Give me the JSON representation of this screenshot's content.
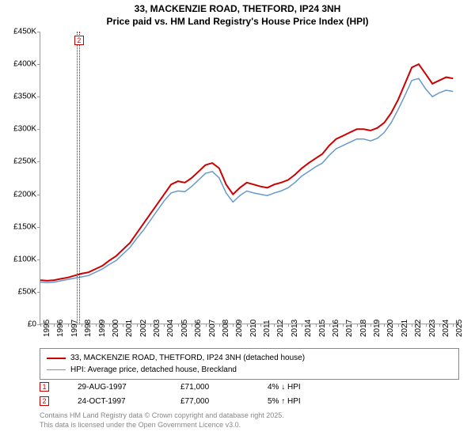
{
  "title_line1": "33, MACKENZIE ROAD, THETFORD, IP24 3NH",
  "title_line2": "Price paid vs. HM Land Registry's House Price Index (HPI)",
  "chart": {
    "type": "line",
    "background_color": "#ffffff",
    "ylim": [
      0,
      450000
    ],
    "xlim": [
      1995,
      2025.5
    ],
    "yticks": [
      0,
      50000,
      100000,
      150000,
      200000,
      250000,
      300000,
      350000,
      400000,
      450000
    ],
    "ytick_labels": [
      "£0",
      "£50K",
      "£100K",
      "£150K",
      "£200K",
      "£250K",
      "£300K",
      "£350K",
      "£400K",
      "£450K"
    ],
    "xticks": [
      1995,
      1996,
      1997,
      1998,
      1999,
      2000,
      2001,
      2002,
      2003,
      2004,
      2005,
      2006,
      2007,
      2008,
      2009,
      2010,
      2011,
      2012,
      2013,
      2014,
      2015,
      2016,
      2017,
      2018,
      2019,
      2020,
      2021,
      2022,
      2023,
      2024,
      2025
    ],
    "tick_color": "#999999",
    "tick_fontsize": 10,
    "series": [
      {
        "name": "price_paid",
        "label": "33, MACKENZIE ROAD, THETFORD, IP24 3NH (detached house)",
        "color": "#cc0000",
        "line_width": 2,
        "x": [
          1995,
          1995.5,
          1996,
          1996.5,
          1997,
          1997.5,
          1998,
          1998.5,
          1999,
          1999.5,
          2000,
          2000.5,
          2001,
          2001.5,
          2002,
          2002.5,
          2003,
          2003.5,
          2004,
          2004.5,
          2005,
          2005.5,
          2006,
          2006.5,
          2007,
          2007.5,
          2008,
          2008.5,
          2009,
          2009.5,
          2010,
          2010.5,
          2011,
          2011.5,
          2012,
          2012.5,
          2013,
          2013.5,
          2014,
          2014.5,
          2015,
          2015.5,
          2016,
          2016.5,
          2017,
          2017.5,
          2018,
          2018.5,
          2019,
          2019.5,
          2020,
          2020.5,
          2021,
          2021.5,
          2022,
          2022.5,
          2023,
          2023.5,
          2024,
          2024.5,
          2025
        ],
        "y": [
          68000,
          67000,
          68000,
          70000,
          72000,
          75000,
          78000,
          80000,
          85000,
          90000,
          98000,
          105000,
          115000,
          125000,
          140000,
          155000,
          170000,
          185000,
          200000,
          215000,
          220000,
          218000,
          225000,
          235000,
          245000,
          248000,
          240000,
          215000,
          200000,
          210000,
          218000,
          215000,
          212000,
          210000,
          215000,
          218000,
          222000,
          230000,
          240000,
          248000,
          255000,
          262000,
          275000,
          285000,
          290000,
          295000,
          300000,
          300000,
          298000,
          302000,
          310000,
          325000,
          345000,
          370000,
          395000,
          400000,
          385000,
          370000,
          375000,
          380000,
          378000
        ]
      },
      {
        "name": "hpi",
        "label": "HPI: Average price, detached house, Breckland",
        "color": "#6699cc",
        "line_width": 1.5,
        "x": [
          1995,
          1995.5,
          1996,
          1996.5,
          1997,
          1997.5,
          1998,
          1998.5,
          1999,
          1999.5,
          2000,
          2000.5,
          2001,
          2001.5,
          2002,
          2002.5,
          2003,
          2003.5,
          2004,
          2004.5,
          2005,
          2005.5,
          2006,
          2006.5,
          2007,
          2007.5,
          2008,
          2008.5,
          2009,
          2009.5,
          2010,
          2010.5,
          2011,
          2011.5,
          2012,
          2012.5,
          2013,
          2013.5,
          2014,
          2014.5,
          2015,
          2015.5,
          2016,
          2016.5,
          2017,
          2017.5,
          2018,
          2018.5,
          2019,
          2019.5,
          2020,
          2020.5,
          2021,
          2021.5,
          2022,
          2022.5,
          2023,
          2023.5,
          2024,
          2024.5,
          2025
        ],
        "y": [
          65000,
          64000,
          65000,
          67000,
          69000,
          71000,
          73000,
          75000,
          80000,
          85000,
          92000,
          98000,
          108000,
          118000,
          132000,
          145000,
          160000,
          175000,
          190000,
          202000,
          205000,
          204000,
          212000,
          222000,
          232000,
          235000,
          225000,
          202000,
          188000,
          198000,
          205000,
          202000,
          200000,
          198000,
          202000,
          205000,
          210000,
          218000,
          228000,
          235000,
          242000,
          248000,
          260000,
          270000,
          275000,
          280000,
          285000,
          285000,
          282000,
          286000,
          295000,
          310000,
          330000,
          352000,
          375000,
          378000,
          362000,
          350000,
          356000,
          360000,
          358000
        ]
      }
    ],
    "markers": [
      {
        "n": "1",
        "x": 1997.66,
        "color": "#cc0000"
      },
      {
        "n": "2",
        "x": 1997.81,
        "color": "#cc0000"
      }
    ]
  },
  "legend": {
    "border_color": "#888888",
    "items": [
      {
        "color": "#cc0000",
        "width": 2,
        "label": "33, MACKENZIE ROAD, THETFORD, IP24 3NH (detached house)"
      },
      {
        "color": "#6699cc",
        "width": 1.5,
        "label": "HPI: Average price, detached house, Breckland"
      }
    ]
  },
  "sales": [
    {
      "n": "1",
      "color": "#cc0000",
      "date": "29-AUG-1997",
      "price": "£71,000",
      "delta": "4% ↓ HPI"
    },
    {
      "n": "2",
      "color": "#cc0000",
      "date": "24-OCT-1997",
      "price": "£77,000",
      "delta": "5% ↑ HPI"
    }
  ],
  "footer_line1": "Contains HM Land Registry data © Crown copyright and database right 2025.",
  "footer_line2": "This data is licensed under the Open Government Licence v3.0."
}
